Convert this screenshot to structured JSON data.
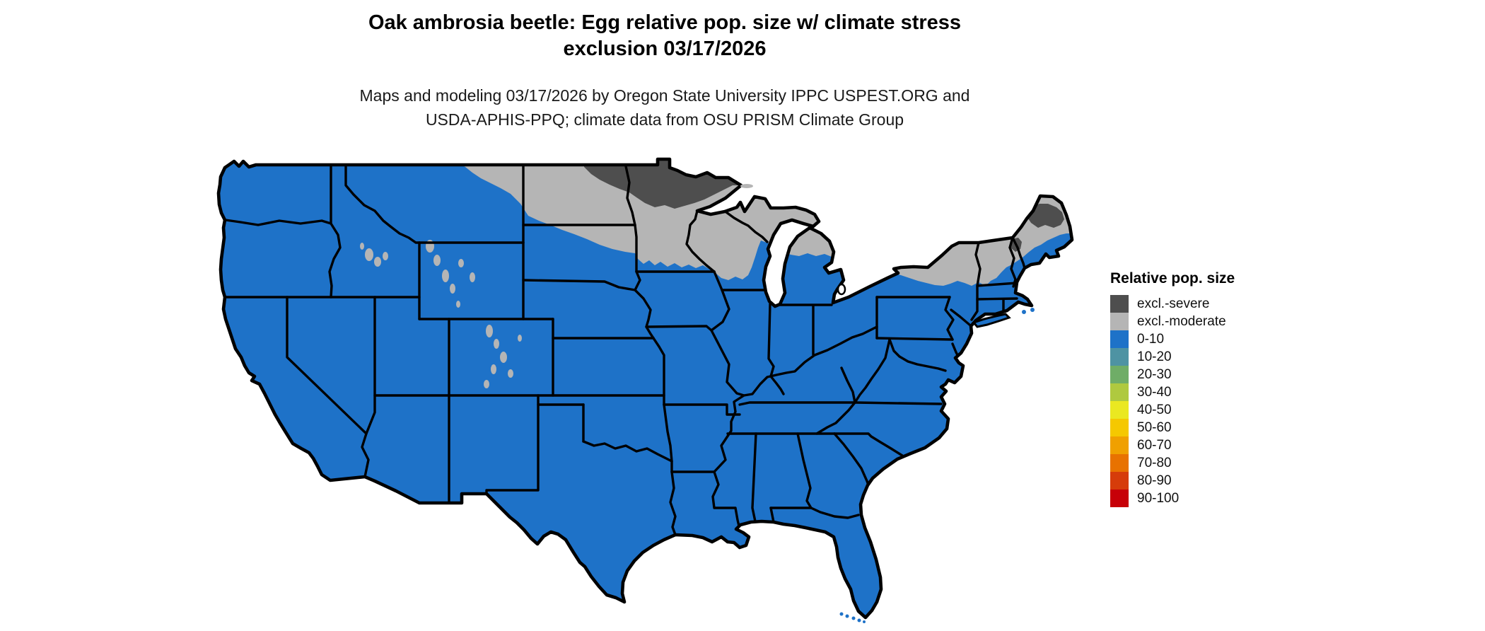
{
  "title": {
    "line1": "Oak ambrosia beetle: Egg relative pop. size w/ climate stress",
    "line2": "exclusion 03/17/2026"
  },
  "subtitle": {
    "line1": "Maps and modeling 03/17/2026 by Oregon State University IPPC USPEST.ORG and",
    "line2": "USDA-APHIS-PPQ; climate data from OSU PRISM Climate Group"
  },
  "legend": {
    "title": "Relative pop. size",
    "items": [
      {
        "label": "excl.-severe",
        "color": "#4E4E4E"
      },
      {
        "label": "excl.-moderate",
        "color": "#B5B5B5"
      },
      {
        "label": "0-10",
        "color": "#1E72C8"
      },
      {
        "label": "10-20",
        "color": "#4E93A3"
      },
      {
        "label": "20-30",
        "color": "#6FAD67"
      },
      {
        "label": "30-40",
        "color": "#AFC93F"
      },
      {
        "label": "40-50",
        "color": "#EAE821"
      },
      {
        "label": "50-60",
        "color": "#F5C800"
      },
      {
        "label": "60-70",
        "color": "#F0A000"
      },
      {
        "label": "70-80",
        "color": "#E87200"
      },
      {
        "label": "80-90",
        "color": "#D63C0A"
      },
      {
        "label": "90-100",
        "color": "#C70008"
      }
    ]
  },
  "map": {
    "base_color": "#1E72C8",
    "moderate_color": "#B5B5B5",
    "severe_color": "#4E4E4E",
    "border_color": "#000000",
    "water_color": "#ffffff",
    "regions": [
      {
        "name": "conus-base",
        "category": "0-10"
      },
      {
        "name": "northern-tier-exclusion",
        "category": "excl.-moderate",
        "area": "eastern Montana, North Dakota, NE South Dakota, Minnesota, Wisconsin, northern Michigan"
      },
      {
        "name": "northeast-exclusion",
        "category": "excl.-moderate",
        "area": "upstate New York, Vermont, New Hampshire, interior Maine"
      },
      {
        "name": "rockies-exclusion-patches",
        "category": "excl.-moderate",
        "area": "high elevations in Idaho, Wyoming, Colorado"
      },
      {
        "name": "northern-minnesota-severe",
        "category": "excl.-severe",
        "area": "northern Minnesota and NE North Dakota"
      },
      {
        "name": "northern-maine-severe",
        "category": "excl.-severe",
        "area": "northern Maine"
      },
      {
        "name": "northern-new-hampshire-severe",
        "category": "excl.-severe",
        "area": "northern New Hampshire"
      }
    ]
  },
  "chart_data": {
    "type": "choropleth_map",
    "title": "Oak ambrosia beetle: Egg relative pop. size w/ climate stress exclusion 03/17/2026",
    "legend_title": "Relative pop. size",
    "categories": [
      "excl.-severe",
      "excl.-moderate",
      "0-10",
      "10-20",
      "20-30",
      "30-40",
      "40-50",
      "50-60",
      "60-70",
      "70-80",
      "80-90",
      "90-100"
    ],
    "dominant_category": "0-10",
    "notes": "Nearly all of the continental US is in class 0-10 (blue); moderate climate-stress exclusion (light gray) covers the northern tier (eastern MT, ND, MN, WI, northern MI, upstate NY, VT, NH, interior ME); severe exclusion (dark gray) covers northern MN / NE ND, northern ME and a spot in northern NH."
  }
}
